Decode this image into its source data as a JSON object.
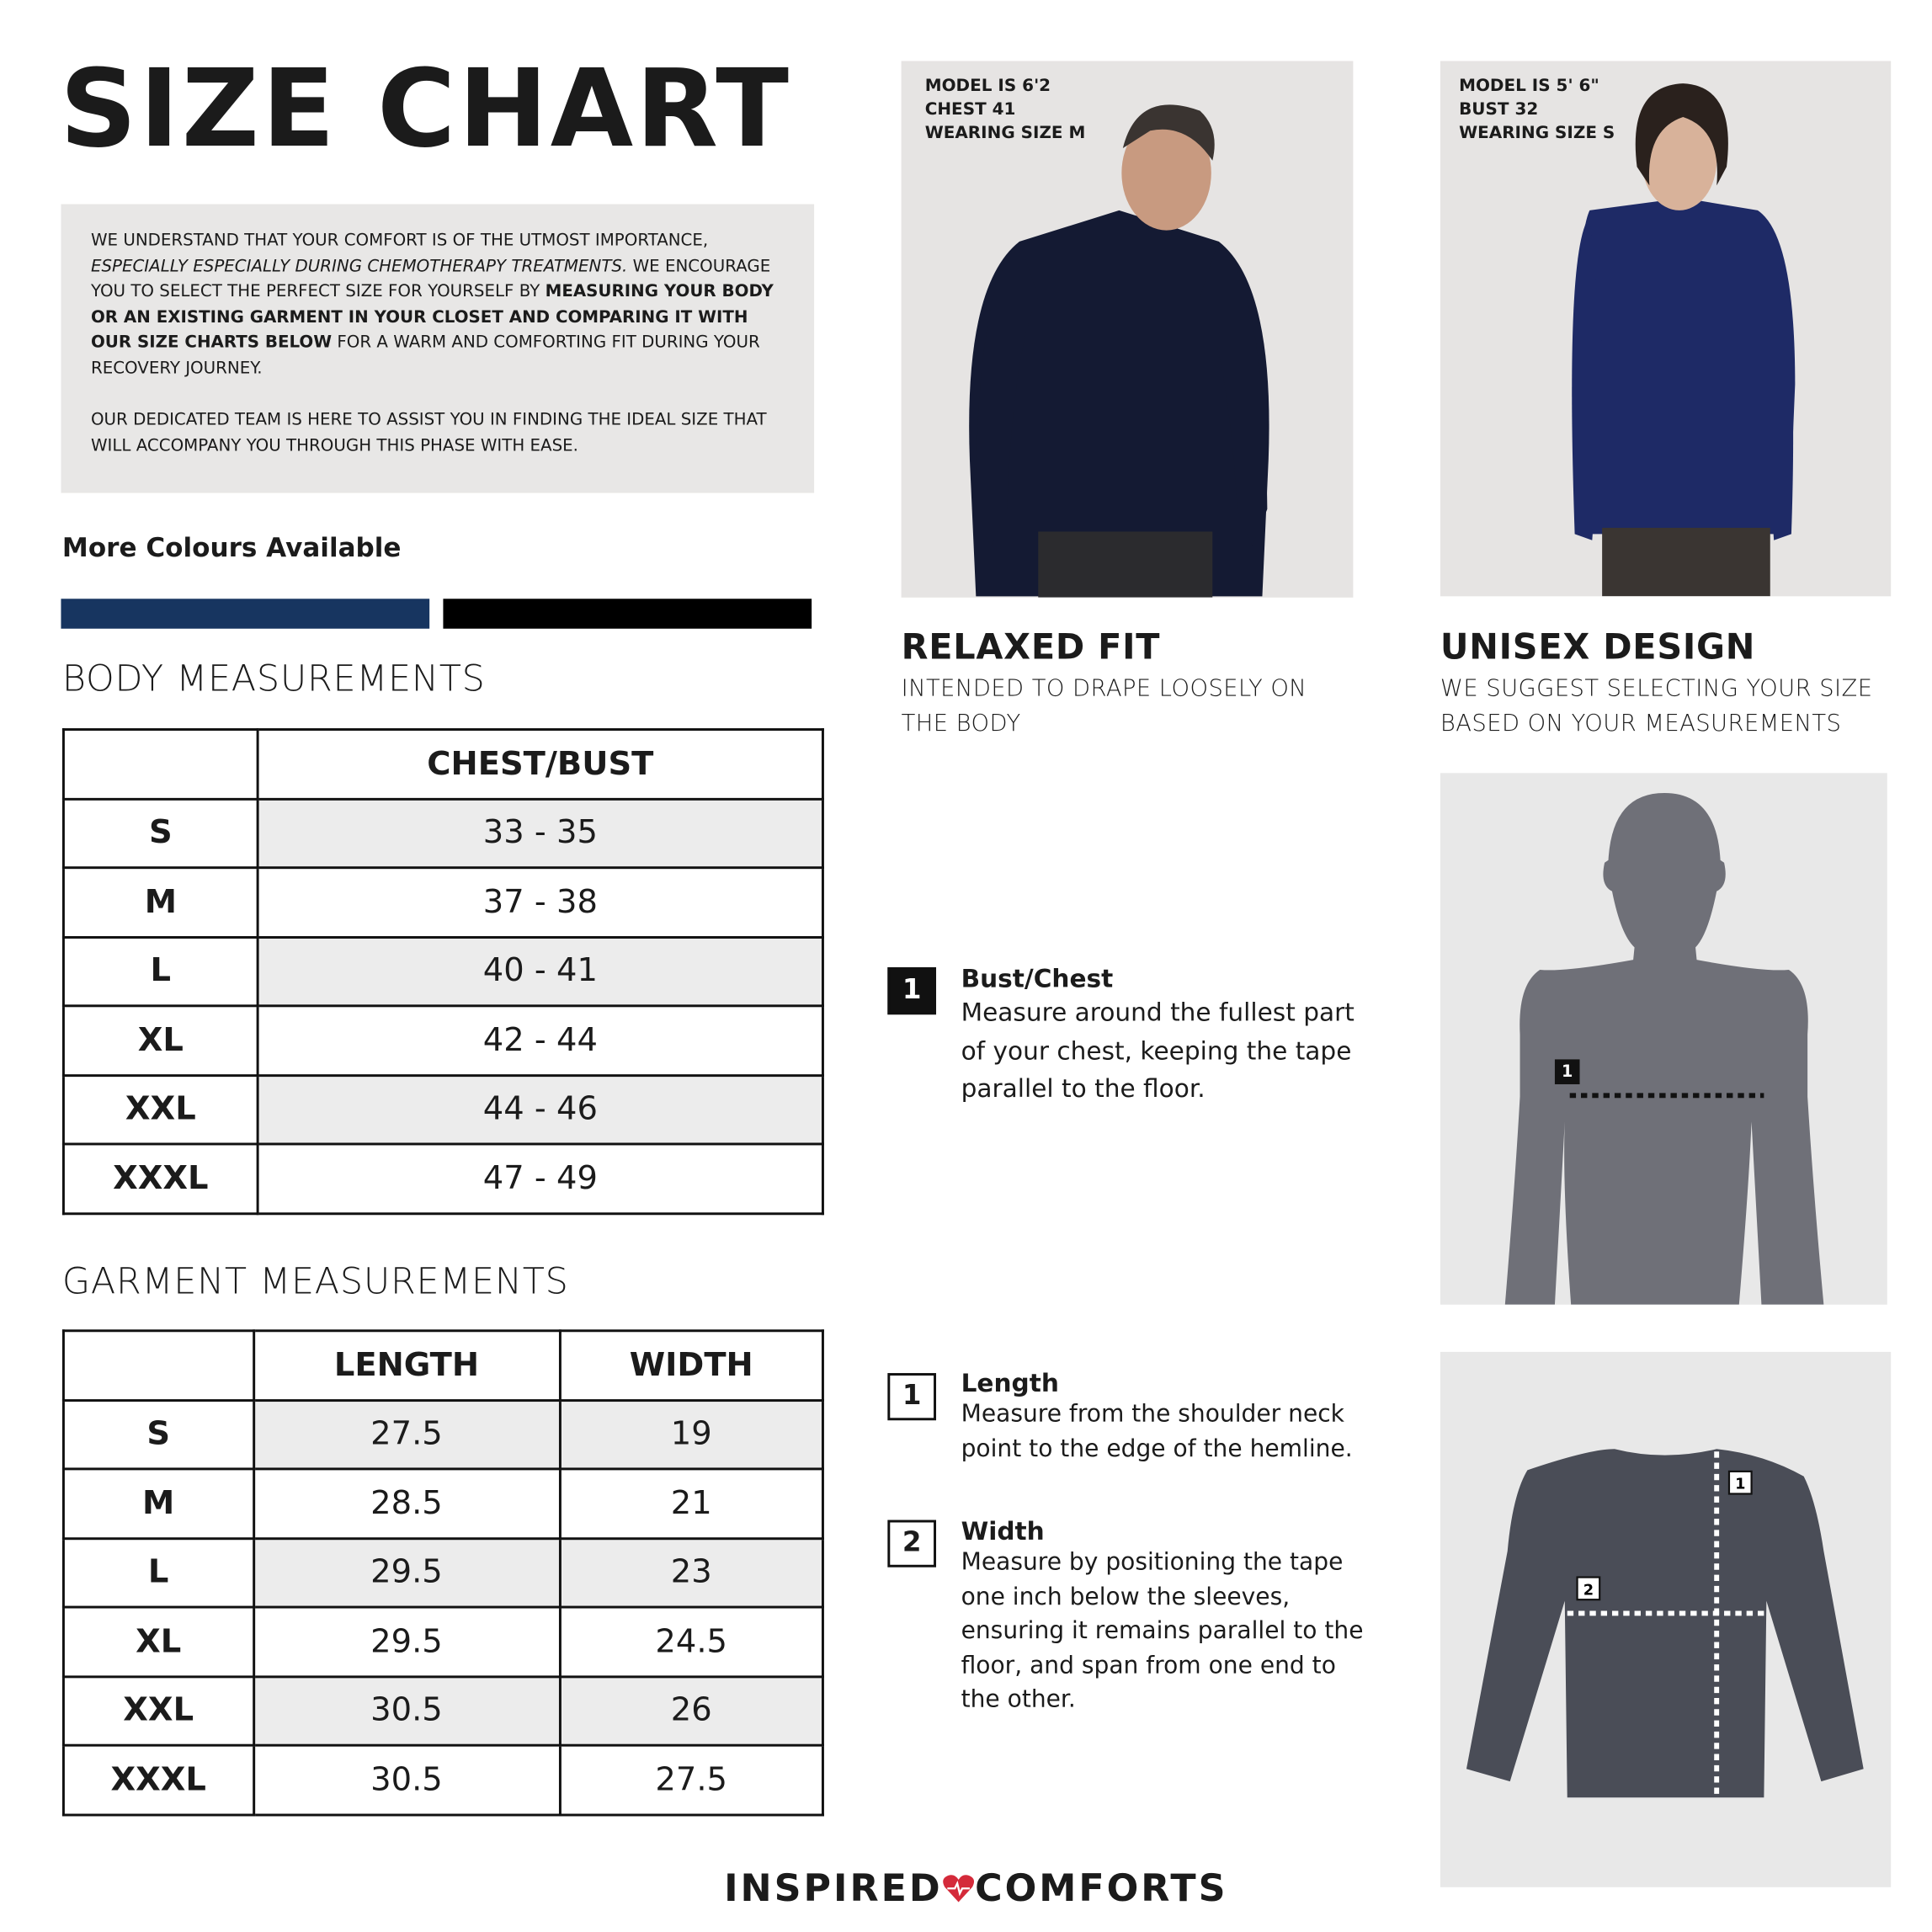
{
  "header": {
    "title": "SIZE CHART"
  },
  "intro": {
    "paragraph_1": {
      "lead": "WE UNDERSTAND THAT YOUR COMFORT IS OF THE UTMOST IMPORTANCE, ",
      "italic": "ESPECIALLY ESPECIALLY DURING CHEMOTHERAPY TREATMENTS.",
      "middle": " WE ENCOURAGE YOU TO SELECT THE PERFECT SIZE FOR YOURSELF BY ",
      "bold": "MEASURING YOUR BODY OR AN EXISTING GARMENT IN YOUR CLOSET AND COMPARING IT WITH OUR SIZE CHARTS BELOW",
      "tail": " FOR A WARM AND COMFORTING FIT DURING YOUR RECOVERY JOURNEY."
    },
    "paragraph_2": "OUR DEDICATED TEAM IS HERE TO ASSIST YOU IN FINDING THE IDEAL SIZE THAT WILL ACCOMPANY YOU THROUGH THIS PHASE WITH EASE."
  },
  "colours": {
    "heading": "More Colours Available",
    "swatches": [
      "#173560",
      "#000000"
    ]
  },
  "body_measurements": {
    "title": "BODY MEASUREMENTS",
    "columns": [
      "CHEST/BUST"
    ],
    "rows": [
      [
        "S",
        "33 - 35"
      ],
      [
        "M",
        "37 - 38"
      ],
      [
        "L",
        "40 - 41"
      ],
      [
        "XL",
        "42 - 44"
      ],
      [
        "XXL",
        "44 - 46"
      ],
      [
        "XXXL",
        "47 - 49"
      ]
    ]
  },
  "garment_measurements": {
    "title": "GARMENT MEASUREMENTS",
    "columns": [
      "LENGTH",
      "WIDTH"
    ],
    "rows": [
      [
        "S",
        "27.5",
        "19"
      ],
      [
        "M",
        "28.5",
        "21"
      ],
      [
        "L",
        "29.5",
        "23"
      ],
      [
        "XL",
        "29.5",
        "24.5"
      ],
      [
        "XXL",
        "30.5",
        "26"
      ],
      [
        "XXXL",
        "30.5",
        "27.5"
      ]
    ]
  },
  "models": [
    {
      "lines": [
        "MODEL IS 6'2",
        "CHEST 41",
        "WEARING SIZE M"
      ]
    },
    {
      "lines": [
        "MODEL IS 5' 6\"",
        "BUST 32",
        "WEARING SIZE S"
      ]
    }
  ],
  "features": [
    {
      "title": "RELAXED FIT",
      "text": "INTENDED TO DRAPE LOOSELY ON THE BODY"
    },
    {
      "title": "UNISEX DESIGN",
      "text": "WE SUGGEST SELECTING YOUR SIZE BASED ON YOUR MEASUREMENTS"
    }
  ],
  "body_guide": [
    {
      "number": "1",
      "title": "Bust/Chest",
      "text": "Measure around the fullest part of your chest, keeping the tape parallel to the floor."
    }
  ],
  "garment_guide": [
    {
      "number": "1",
      "title": "Length",
      "text": "Measure from the shoulder neck point to the edge of the hemline."
    },
    {
      "number": "2",
      "title": "Width",
      "text": "Measure by positioning the tape one inch below the sleeves, ensuring it remains parallel to the floor, and span from one end to the other."
    }
  ],
  "brand": {
    "left": "INSPIRED",
    "right": "COMFORTS"
  }
}
